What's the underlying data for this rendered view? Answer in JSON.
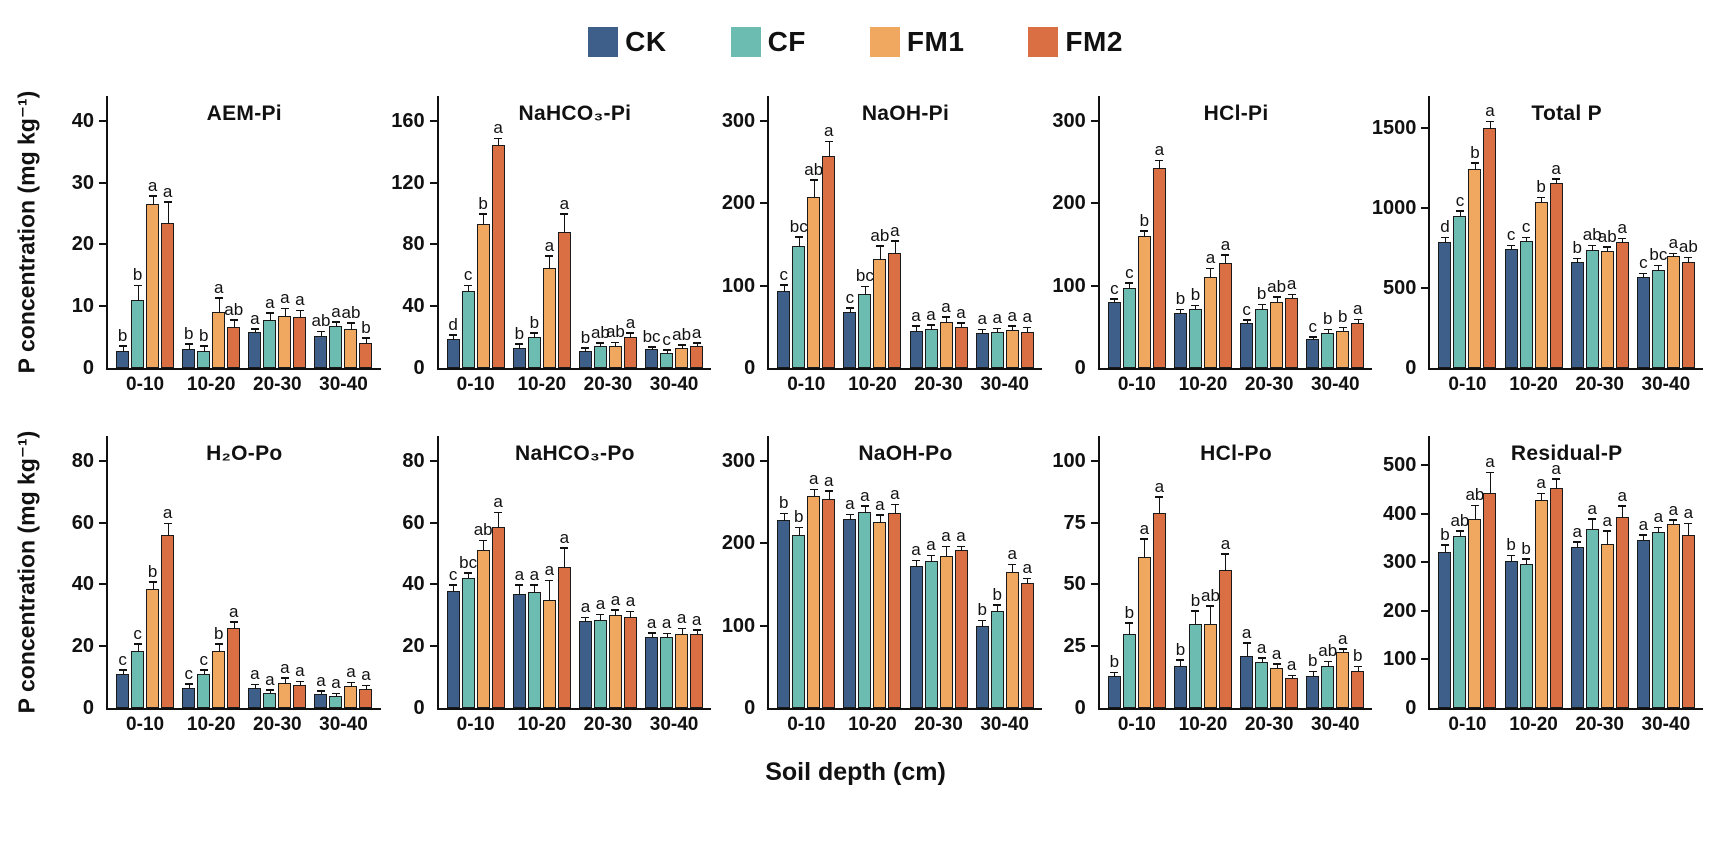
{
  "legend": {
    "items": [
      {
        "label": "CK",
        "color": "#3e5f8a"
      },
      {
        "label": "CF",
        "color": "#6cbcb2"
      },
      {
        "label": "FM1",
        "color": "#f0a75f"
      },
      {
        "label": "FM2",
        "color": "#d96f43"
      }
    ]
  },
  "axes": {
    "y_title": "P concentration (mg kg⁻¹)",
    "x_title": "Soil depth (cm)"
  },
  "chart_data": [
    {
      "type": "bar",
      "row": 0,
      "title": "AEM-Pi",
      "categories": [
        "0-10",
        "10-20",
        "20-30",
        "30-40"
      ],
      "series": [
        "CK",
        "CF",
        "FM1",
        "FM2"
      ],
      "ylim": [
        0,
        44
      ],
      "yticks": [
        0,
        10,
        20,
        30,
        40
      ],
      "values": [
        [
          2.8,
          11,
          26.5,
          23.5
        ],
        [
          3,
          2.8,
          9,
          6.7
        ],
        [
          5.8,
          7.8,
          8.4,
          8.3
        ],
        [
          5.2,
          6.8,
          6.3,
          4
        ]
      ],
      "errors": [
        [
          0.6,
          2.2,
          1.2,
          3.2
        ],
        [
          0.8,
          0.6,
          2.2,
          0.9
        ],
        [
          0.4,
          1.0,
          1.1,
          0.9
        ],
        [
          0.6,
          0.5,
          0.9,
          0.7
        ]
      ],
      "letters": [
        [
          "b",
          "b",
          "a",
          "a"
        ],
        [
          "b",
          "b",
          "a",
          "ab"
        ],
        [
          "a",
          "a",
          "a",
          "a"
        ],
        [
          "ab",
          "a",
          "ab",
          "b"
        ]
      ]
    },
    {
      "type": "bar",
      "row": 0,
      "title": "NaHCO₃-Pi",
      "categories": [
        "0-10",
        "10-20",
        "20-30",
        "30-40"
      ],
      "series": [
        "CK",
        "CF",
        "FM1",
        "FM2"
      ],
      "ylim": [
        0,
        176
      ],
      "yticks": [
        0,
        40,
        80,
        120,
        160
      ],
      "values": [
        [
          19,
          50,
          93,
          144
        ],
        [
          13,
          20,
          65,
          88
        ],
        [
          11,
          14,
          14,
          20
        ],
        [
          12,
          10,
          13,
          14
        ]
      ],
      "errors": [
        [
          2,
          3,
          6,
          4
        ],
        [
          2,
          2,
          7,
          11
        ],
        [
          1.5,
          1.5,
          2,
          2
        ],
        [
          1,
          1,
          1.5,
          1.5
        ]
      ],
      "letters": [
        [
          "d",
          "c",
          "b",
          "a"
        ],
        [
          "b",
          "b",
          "a",
          "a"
        ],
        [
          "b",
          "ab",
          "ab",
          "a"
        ],
        [
          "bc",
          "c",
          "ab",
          "a"
        ]
      ]
    },
    {
      "type": "bar",
      "row": 0,
      "title": "NaOH-Pi",
      "categories": [
        "0-10",
        "10-20",
        "20-30",
        "30-40"
      ],
      "series": [
        "CK",
        "CF",
        "FM1",
        "FM2"
      ],
      "ylim": [
        0,
        330
      ],
      "yticks": [
        0,
        100,
        200,
        300
      ],
      "values": [
        [
          93,
          148,
          207,
          257
        ],
        [
          68,
          90,
          132,
          140
        ],
        [
          45,
          47,
          56,
          50
        ],
        [
          42,
          44,
          46,
          44
        ]
      ],
      "errors": [
        [
          7,
          10,
          20,
          17
        ],
        [
          4,
          8,
          15,
          13
        ],
        [
          5,
          4,
          5,
          4
        ],
        [
          4,
          3,
          4,
          4
        ]
      ],
      "letters": [
        [
          "c",
          "bc",
          "ab",
          "a"
        ],
        [
          "c",
          "bc",
          "ab",
          "a"
        ],
        [
          "a",
          "a",
          "a",
          "a"
        ],
        [
          "a",
          "a",
          "a",
          "a"
        ]
      ]
    },
    {
      "type": "bar",
      "row": 0,
      "title": "HCl-Pi",
      "categories": [
        "0-10",
        "10-20",
        "20-30",
        "30-40"
      ],
      "series": [
        "CK",
        "CF",
        "FM1",
        "FM2"
      ],
      "ylim": [
        0,
        330
      ],
      "yticks": [
        0,
        100,
        200,
        300
      ],
      "values": [
        [
          80,
          97,
          160,
          243
        ],
        [
          67,
          72,
          110,
          128
        ],
        [
          55,
          72,
          80,
          85
        ],
        [
          35,
          43,
          45,
          55
        ]
      ],
      "errors": [
        [
          3,
          5,
          5,
          8
        ],
        [
          3,
          3,
          10,
          8
        ],
        [
          2,
          4,
          5,
          3
        ],
        [
          2,
          3,
          3,
          3
        ]
      ],
      "letters": [
        [
          "c",
          "c",
          "b",
          "a"
        ],
        [
          "b",
          "b",
          "a",
          "a"
        ],
        [
          "c",
          "b",
          "ab",
          "a"
        ],
        [
          "c",
          "b",
          "b",
          "a"
        ]
      ]
    },
    {
      "type": "bar",
      "row": 0,
      "title": "Total P",
      "categories": [
        "0-10",
        "10-20",
        "20-30",
        "30-40"
      ],
      "series": [
        "CK",
        "CF",
        "FM1",
        "FM2"
      ],
      "ylim": [
        0,
        1700
      ],
      "yticks": [
        0,
        500,
        1000,
        1500
      ],
      "values": [
        [
          790,
          950,
          1245,
          1500
        ],
        [
          745,
          795,
          1035,
          1155
        ],
        [
          665,
          735,
          730,
          790
        ],
        [
          570,
          615,
          700,
          660
        ]
      ],
      "errors": [
        [
          20,
          25,
          30,
          35
        ],
        [
          15,
          15,
          25,
          20
        ],
        [
          15,
          25,
          20,
          15
        ],
        [
          15,
          20,
          10,
          25
        ]
      ],
      "letters": [
        [
          "d",
          "c",
          "b",
          "a"
        ],
        [
          "c",
          "c",
          "b",
          "a"
        ],
        [
          "b",
          "ab",
          "ab",
          "a"
        ],
        [
          "c",
          "bc",
          "a",
          "ab"
        ]
      ]
    },
    {
      "type": "bar",
      "row": 1,
      "title": "H₂O-Po",
      "categories": [
        "0-10",
        "10-20",
        "20-30",
        "30-40"
      ],
      "series": [
        "CK",
        "CF",
        "FM1",
        "FM2"
      ],
      "ylim": [
        0,
        88
      ],
      "yticks": [
        0,
        20,
        40,
        60,
        80
      ],
      "values": [
        [
          11,
          18.5,
          38.5,
          56
        ],
        [
          6.5,
          11,
          18.5,
          26
        ],
        [
          6.5,
          5,
          8,
          7.5
        ],
        [
          4.5,
          4,
          7,
          6
        ]
      ],
      "errors": [
        [
          1,
          2,
          2,
          3.5
        ],
        [
          1,
          1,
          2,
          1.5
        ],
        [
          0.8,
          0.6,
          1.5,
          0.8
        ],
        [
          0.8,
          0.5,
          1,
          1
        ]
      ],
      "letters": [
        [
          "c",
          "c",
          "b",
          "a"
        ],
        [
          "c",
          "c",
          "b",
          "a"
        ],
        [
          "a",
          "a",
          "a",
          "a"
        ],
        [
          "a",
          "a",
          "a",
          "a"
        ]
      ]
    },
    {
      "type": "bar",
      "row": 1,
      "title": "NaHCO₃-Po",
      "categories": [
        "0-10",
        "10-20",
        "20-30",
        "30-40"
      ],
      "series": [
        "CK",
        "CF",
        "FM1",
        "FM2"
      ],
      "ylim": [
        0,
        88
      ],
      "yticks": [
        0,
        20,
        40,
        60,
        80
      ],
      "values": [
        [
          38,
          42,
          51,
          58.5
        ],
        [
          37,
          37.5,
          35,
          45.5
        ],
        [
          28,
          28.5,
          30,
          29.5
        ],
        [
          23,
          23,
          24,
          24
        ]
      ],
      "errors": [
        [
          1.5,
          1.5,
          3,
          4.5
        ],
        [
          2.5,
          2,
          6,
          6
        ],
        [
          1,
          1.5,
          1.5,
          1.5
        ],
        [
          1,
          0.8,
          1.5,
          1
        ]
      ],
      "letters": [
        [
          "c",
          "bc",
          "ab",
          "a"
        ],
        [
          "a",
          "a",
          "a",
          "a"
        ],
        [
          "a",
          "a",
          "a",
          "a"
        ],
        [
          "a",
          "a",
          "a",
          "a"
        ]
      ]
    },
    {
      "type": "bar",
      "row": 1,
      "title": "NaOH-Po",
      "categories": [
        "0-10",
        "10-20",
        "20-30",
        "30-40"
      ],
      "series": [
        "CK",
        "CF",
        "FM1",
        "FM2"
      ],
      "ylim": [
        0,
        330
      ],
      "yticks": [
        0,
        100,
        200,
        300
      ],
      "values": [
        [
          228,
          210,
          257,
          254
        ],
        [
          229,
          238,
          226,
          236
        ],
        [
          172,
          178,
          185,
          192
        ],
        [
          100,
          118,
          165,
          152
        ]
      ],
      "errors": [
        [
          7,
          8,
          7,
          8
        ],
        [
          5,
          6,
          7,
          10
        ],
        [
          6,
          6,
          10,
          3
        ],
        [
          5,
          6,
          8,
          4
        ]
      ],
      "letters": [
        [
          "b",
          "b",
          "a",
          "a"
        ],
        [
          "a",
          "a",
          "a",
          "a"
        ],
        [
          "a",
          "a",
          "a",
          "a"
        ],
        [
          "b",
          "b",
          "a",
          "a"
        ]
      ]
    },
    {
      "type": "bar",
      "row": 1,
      "title": "HCl-Po",
      "categories": [
        "0-10",
        "10-20",
        "20-30",
        "30-40"
      ],
      "series": [
        "CK",
        "CF",
        "FM1",
        "FM2"
      ],
      "ylim": [
        0,
        110
      ],
      "yticks": [
        0,
        25,
        50,
        75,
        100
      ],
      "values": [
        [
          13,
          30,
          61,
          79
        ],
        [
          17,
          34,
          34,
          56
        ],
        [
          21,
          18.5,
          16,
          12
        ],
        [
          13,
          17,
          22.5,
          15
        ]
      ],
      "errors": [
        [
          1,
          4,
          7,
          6
        ],
        [
          2,
          5,
          7,
          6
        ],
        [
          5,
          1.5,
          1.5,
          0.8
        ],
        [
          1.5,
          1.5,
          1,
          1.5
        ]
      ],
      "letters": [
        [
          "b",
          "b",
          "a",
          "a"
        ],
        [
          "b",
          "b",
          "ab",
          "a"
        ],
        [
          "a",
          "a",
          "a",
          "a"
        ],
        [
          "b",
          "ab",
          "a",
          "b"
        ]
      ]
    },
    {
      "type": "bar",
      "row": 1,
      "title": "Residual-P",
      "categories": [
        "0-10",
        "10-20",
        "20-30",
        "30-40"
      ],
      "series": [
        "CK",
        "CF",
        "FM1",
        "FM2"
      ],
      "ylim": [
        0,
        560
      ],
      "yticks": [
        0,
        100,
        200,
        300,
        400,
        500
      ],
      "values": [
        [
          322,
          355,
          390,
          443
        ],
        [
          302,
          297,
          428,
          452
        ],
        [
          332,
          368,
          338,
          394
        ],
        [
          345,
          362,
          378,
          356
        ]
      ],
      "errors": [
        [
          12,
          8,
          25,
          40
        ],
        [
          10,
          8,
          12,
          18
        ],
        [
          8,
          20,
          25,
          20
        ],
        [
          10,
          8,
          8,
          22
        ]
      ],
      "letters": [
        [
          "b",
          "ab",
          "ab",
          "a"
        ],
        [
          "b",
          "b",
          "a",
          "a"
        ],
        [
          "a",
          "a",
          "a",
          "a"
        ],
        [
          "a",
          "a",
          "a",
          "a"
        ]
      ]
    }
  ]
}
